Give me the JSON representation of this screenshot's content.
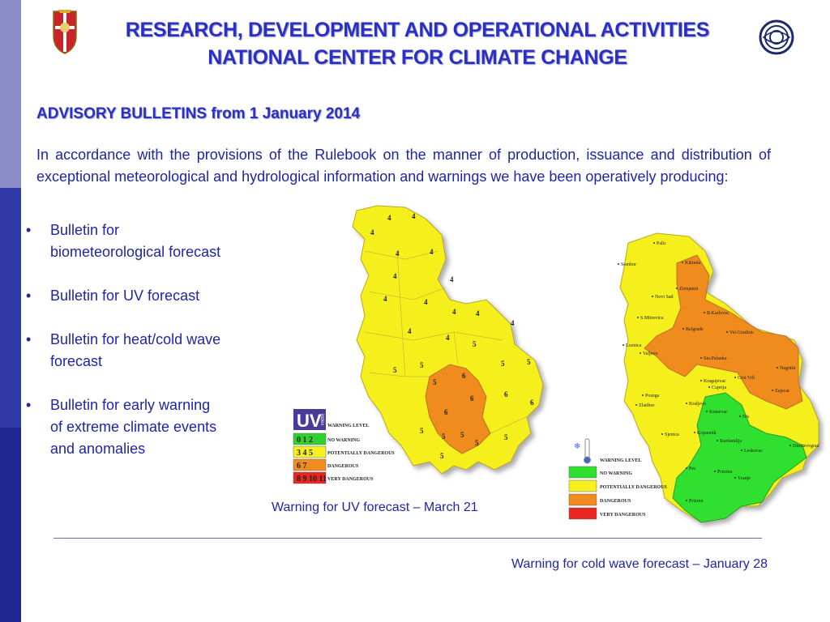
{
  "header": {
    "title_line1": "RESEARCH, DEVELOPMENT AND OPERATIONAL ACTIVITIES",
    "title_line2": "NATIONAL CENTER FOR CLIMATE CHANGE"
  },
  "section": {
    "subtitle": "ADVISORY BULLETINS from 1 January  2014",
    "intro": "In accordance with the provisions of the Rulebook on the manner of production, issuance and distribution of exceptional meteorological and hydrological information and warnings we have been operatively producing:"
  },
  "bullets": [
    "Bulletin for biometeorological forecast",
    "Bulletin for UV forecast",
    "Bulletin for heat/cold wave forecast",
    "Bulletin for early warning of extreme climate events and anomalies"
  ],
  "uv_map": {
    "caption": "Warning for UV forecast – March 21",
    "badge": "UV",
    "badge_sub": "index",
    "legend_title": "WARNING LEVEL",
    "legend": [
      {
        "values": "0  1  2",
        "label": "NO WARNING",
        "color": "#2fd12f"
      },
      {
        "values": "3  4  5",
        "label": "POTENTIALLY  DANGEROUS",
        "color": "#f5f01e"
      },
      {
        "values": "6  7",
        "label": "DANGEROUS",
        "color": "#f08c1e"
      },
      {
        "values": "8 9 10 11",
        "label": "VERY DANGEROUS",
        "color": "#e8251e"
      }
    ],
    "region_values": [
      "4",
      "4",
      "4",
      "4",
      "4",
      "4",
      "4",
      "4",
      "4",
      "4",
      "4",
      "4",
      "4",
      "4",
      "5",
      "5",
      "5",
      "5",
      "5",
      "5",
      "6",
      "6",
      "6",
      "6",
      "6",
      "5",
      "5",
      "5",
      "5",
      "5",
      "5"
    ]
  },
  "cold_map": {
    "caption": "Warning for cold wave forecast – January 28",
    "legend_title": "WARNING  LEVEL",
    "legend": [
      {
        "label": "NO WARNING",
        "color": "#2fe02f"
      },
      {
        "label": "POTENTIALLY DANGEROUS",
        "color": "#f5f01e"
      },
      {
        "label": "DANGEROUS",
        "color": "#f08c1e"
      },
      {
        "label": "VERY DANGEROUS",
        "color": "#e8251e"
      }
    ],
    "cities": [
      "Palic",
      "Sombor",
      "Kikinda",
      "Novi Sad",
      "Zrenjanin",
      "S.Mitrovica",
      "B.Karlovac",
      "Belgrade",
      "Vel.Gradiste",
      "Loznica",
      "Sm.Palanka",
      "Negotin",
      "Valjevo",
      "Kragujevac",
      "Cuprija",
      "Crni Vrh",
      "Zajecar",
      "Pozega",
      "Zlatibor",
      "Kraljevo",
      "Krusevac",
      "Nis",
      "Sjenica",
      "Kopaonik",
      "Kuršumlija",
      "Leskovac",
      "Dimitrovgrad",
      "Pec",
      "Pristina",
      "Vranje",
      "Prizren"
    ]
  },
  "colors": {
    "title": "#2b2fc4",
    "body_text": "#1f25a6",
    "sidebar_light": "#8c8cc9",
    "sidebar_dark": "#2f3aa8",
    "yellow": "#f5f01e",
    "orange": "#f08c1e",
    "green": "#2fe02f",
    "red": "#e8251e"
  },
  "icons": {
    "emblem": "serbian-coat-of-arms-icon",
    "logo": "national-center-logo-icon",
    "bullet": "•",
    "thermometer": "thermometer-snowflake-icon"
  }
}
